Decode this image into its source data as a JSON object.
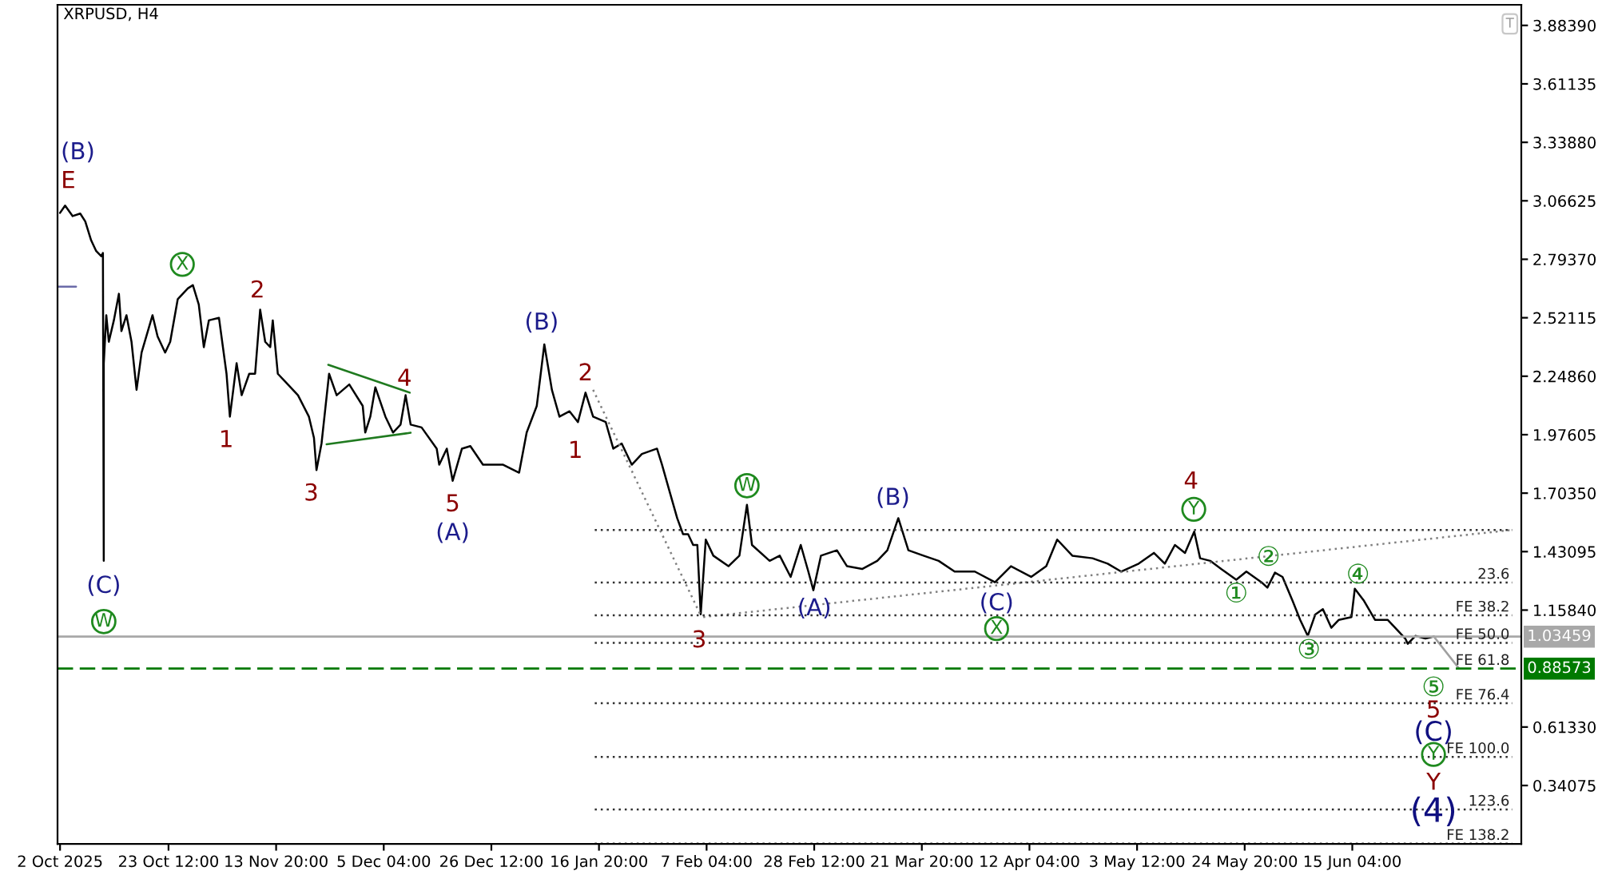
{
  "chart_data": {
    "type": "line",
    "title": "XRPUSD, H4",
    "xlim": [
      "2025-10-01T12:00",
      "2026-07-18T16:00"
    ],
    "xticks": [
      {
        "value": "2025-10-02T00:00",
        "label": "2 Oct 2025"
      },
      {
        "value": "2025-10-23T12:00",
        "label": "23 Oct 12:00"
      },
      {
        "value": "2025-11-13T20:00",
        "label": "13 Nov 20:00"
      },
      {
        "value": "2025-12-05T04:00",
        "label": "5 Dec 04:00"
      },
      {
        "value": "2025-12-26T12:00",
        "label": "26 Dec 12:00"
      },
      {
        "value": "2026-01-16T20:00",
        "label": "16 Jan 20:00"
      },
      {
        "value": "2026-02-07T04:00",
        "label": "7 Feb 04:00"
      },
      {
        "value": "2026-02-28T12:00",
        "label": "28 Feb 12:00"
      },
      {
        "value": "2026-03-21T20:00",
        "label": "21 Mar 20:00"
      },
      {
        "value": "2026-04-12T04:00",
        "label": "12 Apr 04:00"
      },
      {
        "value": "2026-05-03T12:00",
        "label": "3 May 12:00"
      },
      {
        "value": "2026-05-24T20:00",
        "label": "24 May 20:00"
      },
      {
        "value": "2026-06-15T04:00",
        "label": "15 Jun 04:00"
      }
    ],
    "ylim": [
      0.068,
      3.98
    ],
    "yticks": [
      {
        "value": 3.8839,
        "label": "3.88390"
      },
      3.61135,
      {
        "value": 3.3388,
        "label": "3.33880"
      },
      3.06625,
      {
        "value": 2.7937,
        "label": "2.79370"
      },
      2.52115,
      {
        "value": 2.2486,
        "label": "2.24860"
      },
      1.97605,
      {
        "value": 1.7035,
        "label": "1.70350"
      },
      1.43095,
      {
        "value": 1.1584,
        "label": "1.15840"
      },
      {
        "value": 0.6133,
        "label": "0.61330"
      },
      0.34075
    ],
    "grid": false,
    "series": [
      {
        "color": "#000000",
        "x": [
          "2025-10-02T00:00",
          "2025-10-03T00:00",
          "2025-10-04T12:00",
          "2025-10-06T00:00",
          "2025-10-07T00:00",
          "2025-10-08T04:00",
          "2025-10-09T04:00",
          "2025-10-10T04:00",
          "2025-10-10T12:00",
          "2025-10-10T16:00",
          "2025-10-10T16:00",
          "2025-10-11T04:00",
          "2025-10-11T16:00",
          "2025-10-12T16:00",
          "2025-10-13T16:00",
          "2025-10-14T04:00",
          "2025-10-15T04:00",
          "2025-10-16T04:00",
          "2025-10-17T04:00",
          "2025-10-18T04:00",
          "2025-10-20T08:00",
          "2025-10-21T08:00",
          "2025-10-22T20:00",
          "2025-10-23T20:00",
          "2025-10-25T08:00",
          "2025-10-27T08:00",
          "2025-10-28T08:00",
          "2025-10-29T12:00",
          "2025-10-30T12:00",
          "2025-10-31T12:00",
          "2025-11-02T12:00",
          "2025-11-04T00:00",
          "2025-11-04T16:00",
          "2025-11-06T00:00",
          "2025-11-07T00:00",
          "2025-11-08T12:00",
          "2025-11-09T16:00",
          "2025-11-10T16:00",
          "2025-11-11T16:00",
          "2025-11-12T16:00",
          "2025-11-13T04:00",
          "2025-11-14T04:00",
          "2025-11-16T04:00",
          "2025-11-18T04:00",
          "2025-11-20T08:00",
          "2025-11-21T08:00",
          "2025-11-21T20:00",
          "2025-11-22T20:00",
          "2025-11-24T08:00",
          "2025-11-25T20:00",
          "2025-11-28T08:00",
          "2025-12-01T00:00",
          "2025-12-01T12:00",
          "2025-12-02T12:00",
          "2025-12-03T12:00",
          "2025-12-05T12:00",
          "2025-12-07T00:00",
          "2025-12-08T12:00",
          "2025-12-09T12:00",
          "2025-12-10T12:00",
          "2025-12-12T16:00",
          "2025-12-15T16:00",
          "2025-12-16T04:00",
          "2025-12-17T16:00",
          "2025-12-18T20:00",
          "2025-12-20T16:00",
          "2025-12-22T08:00",
          "2025-12-24T20:00",
          "2025-12-28T20:00",
          "2026-01-01T00:00",
          "2026-01-02T12:00",
          "2026-01-04T12:00",
          "2026-01-06T00:00",
          "2026-01-07T12:00",
          "2026-01-09T00:00",
          "2026-01-11T00:00",
          "2026-01-12T16:00",
          "2026-01-14T04:00",
          "2026-01-15T16:00",
          "2026-01-18T04:00",
          "2026-01-19T16:00",
          "2026-01-21T08:00",
          "2026-01-23T08:00",
          "2026-01-25T08:00",
          "2026-01-28T08:00",
          "2026-01-29T08:00",
          "2026-01-30T20:00",
          "2026-02-01T08:00",
          "2026-02-02T12:00",
          "2026-02-03T12:00",
          "2026-02-04T12:00",
          "2026-02-05T08:00",
          "2026-02-06T00:00",
          "2026-02-07T00:00",
          "2026-02-08T12:00",
          "2026-02-11T12:00",
          "2026-02-13T16:00",
          "2026-02-15T04:00",
          "2026-02-16T04:00",
          "2026-02-19T16:00",
          "2026-02-21T16:00",
          "2026-02-23T20:00",
          "2026-02-25T20:00",
          "2026-02-27T08:00",
          "2026-02-28T08:00",
          "2026-03-01T20:00",
          "2026-03-05T00:00",
          "2026-03-07T00:00",
          "2026-03-10T00:00",
          "2026-03-13T00:00",
          "2026-03-15T00:00",
          "2026-03-17T04:00",
          "2026-03-19T04:00",
          "2026-03-22T04:00",
          "2026-03-25T04:00",
          "2026-03-28T08:00",
          "2026-04-01T08:00",
          "2026-04-05T08:00",
          "2026-04-08T12:00",
          "2026-04-12T12:00",
          "2026-04-15T12:00",
          "2026-04-17T16:00",
          "2026-04-20T16:00",
          "2026-04-24T16:00",
          "2026-04-27T16:00",
          "2026-04-30T08:00",
          "2026-05-03T20:00",
          "2026-05-06T20:00",
          "2026-05-09T00:00",
          "2026-05-11T00:00",
          "2026-05-13T00:00",
          "2026-05-14T20:00",
          "2026-05-16T00:00",
          "2026-05-18T00:00",
          "2026-05-20T04:00",
          "2026-05-23T04:00",
          "2026-05-25T04:00",
          "2026-05-28T04:00",
          "2026-05-29T08:00",
          "2026-05-30T20:00",
          "2026-06-01T08:00",
          "2026-06-03T08:00",
          "2026-06-04T20:00",
          "2026-06-06T08:00",
          "2026-06-07T20:00",
          "2026-06-09T08:00",
          "2026-06-11T00:00",
          "2026-06-12T12:00",
          "2026-06-15T00:00",
          "2026-06-15T16:00",
          "2026-06-17T12:00",
          "2026-06-19T16:00",
          "2026-06-22T04:00",
          "2026-06-23T16:00",
          "2026-06-25T16:00",
          "2026-06-26T04:00",
          "2026-06-27T16:00",
          "2026-06-29T16:00",
          "2026-07-01T08:00"
        ],
        "values": [
          3.01,
          3.044,
          2.995,
          3.007,
          2.97,
          2.882,
          2.832,
          2.808,
          2.823,
          1.388,
          2.309,
          2.533,
          2.409,
          2.509,
          2.633,
          2.459,
          2.533,
          2.409,
          2.185,
          2.359,
          2.533,
          2.434,
          2.359,
          2.409,
          2.608,
          2.658,
          2.673,
          2.583,
          2.384,
          2.509,
          2.521,
          2.26,
          2.06,
          2.309,
          2.16,
          2.26,
          2.26,
          2.559,
          2.409,
          2.384,
          2.509,
          2.26,
          2.21,
          2.16,
          2.06,
          1.961,
          1.811,
          1.935,
          2.26,
          2.16,
          2.21,
          2.11,
          1.986,
          2.06,
          2.197,
          2.06,
          1.986,
          2.023,
          2.16,
          2.023,
          2.01,
          1.911,
          1.836,
          1.911,
          1.761,
          1.911,
          1.923,
          1.836,
          1.836,
          1.799,
          1.986,
          2.11,
          2.397,
          2.185,
          2.06,
          2.085,
          2.035,
          2.172,
          2.06,
          2.035,
          1.911,
          1.935,
          1.836,
          1.886,
          1.911,
          1.836,
          1.711,
          1.587,
          1.512,
          1.512,
          1.462,
          1.462,
          1.139,
          1.487,
          1.412,
          1.363,
          1.412,
          1.649,
          1.462,
          1.388,
          1.412,
          1.313,
          1.462,
          1.338,
          1.251,
          1.412,
          1.437,
          1.363,
          1.35,
          1.388,
          1.437,
          1.587,
          1.437,
          1.412,
          1.388,
          1.338,
          1.338,
          1.288,
          1.363,
          1.313,
          1.363,
          1.487,
          1.412,
          1.4,
          1.375,
          1.338,
          1.375,
          1.425,
          1.375,
          1.462,
          1.425,
          1.524,
          1.4,
          1.388,
          1.35,
          1.3,
          1.338,
          1.288,
          1.263,
          1.333,
          1.313,
          1.201,
          1.113,
          1.038,
          1.138,
          1.163,
          1.076,
          1.113,
          1.126,
          1.258,
          1.201,
          1.113,
          1.113,
          1.076,
          1.026,
          1.001,
          1.038,
          1.026,
          1.035
        ]
      },
      {
        "color": "#a0a0a0",
        "x": [
          "2026-07-01T08:00",
          "2026-07-06T08:00"
        ],
        "values": [
          1.035,
          0.886
        ]
      },
      {
        "color": "#1f7a1f",
        "x": [
          "2025-11-24T04:00",
          "2025-12-10T08:00"
        ],
        "values": [
          2.302,
          2.172
        ]
      },
      {
        "color": "#1f7a1f",
        "x": [
          "2025-11-23T20:00",
          "2025-12-10T12:00"
        ],
        "values": [
          1.931,
          1.985
        ]
      },
      {
        "color": "#808080",
        "line_style": "dotted",
        "x": [
          "2026-01-15T16:00",
          "2026-02-06T00:00"
        ],
        "values": [
          2.185,
          1.134
        ]
      },
      {
        "color": "#808080",
        "line_style": "dotted",
        "x": [
          "2026-02-06T12:00",
          "2026-07-16T20:00"
        ],
        "values": [
          1.126,
          1.532
        ]
      },
      {
        "color": "#303030",
        "line_style": "dotted",
        "x": [
          "2026-01-16T00:00",
          "2026-07-16T20:00"
        ],
        "values": [
          1.532,
          1.532
        ]
      },
      {
        "color": "#303030",
        "line_style": "dotted",
        "x": [
          "2026-01-16T00:00",
          "2026-07-16T20:00"
        ],
        "values": [
          1.287,
          1.287
        ]
      },
      {
        "color": "#303030",
        "line_style": "dotted",
        "x": [
          "2026-01-16T00:00",
          "2026-07-16T20:00"
        ],
        "values": [
          1.134,
          1.134
        ]
      },
      {
        "color": "#303030",
        "line_style": "dotted",
        "x": [
          "2026-01-16T00:00",
          "2026-07-16T20:00"
        ],
        "values": [
          1.006,
          1.006
        ]
      },
      {
        "color": "#303030",
        "line_style": "dotted",
        "x": [
          "2026-01-16T00:00",
          "2026-07-16T20:00"
        ],
        "values": [
          0.724,
          0.724
        ]
      },
      {
        "color": "#303030",
        "line_style": "dotted",
        "x": [
          "2026-01-16T00:00",
          "2026-07-16T20:00"
        ],
        "values": [
          0.474,
          0.474
        ]
      },
      {
        "color": "#303030",
        "line_style": "dotted",
        "x": [
          "2026-01-16T00:00",
          "2026-07-16T20:00"
        ],
        "values": [
          0.229,
          0.229
        ]
      },
      {
        "color": "#303030",
        "line_style": "dotted",
        "x": [
          "2026-01-16T00:00",
          "2026-07-16T20:00"
        ],
        "values": [
          0.07,
          0.07
        ]
      },
      {
        "color": "#6a6aa8",
        "x": [
          "2025-10-01T12:00",
          "2025-10-05T04:00"
        ],
        "values": [
          2.666,
          2.666
        ]
      }
    ],
    "ref_lines": [
      {
        "axis": "y",
        "value": 1.03459,
        "label": "1.03459",
        "color": "#a8a8a8"
      },
      {
        "axis": "y",
        "value": 0.88573,
        "label": "0.88573",
        "color": "#007a00",
        "line_style": "dashed"
      }
    ],
    "annotations": [
      {
        "text": "(B)",
        "x": "2025-10-03T00:00",
        "y": 3.044
      },
      {
        "text": "E",
        "x": "2025-10-03T00:00",
        "y": 3.044
      },
      {
        "text": "X",
        "x": "2025-10-28T08:00",
        "y": 2.673
      },
      {
        "text": "2",
        "x": "2025-11-10T16:00",
        "y": 2.559
      },
      {
        "text": "1",
        "x": "2025-11-04T16:00",
        "y": 2.06
      },
      {
        "text": "3",
        "x": "2025-11-21T20:00",
        "y": 1.811
      },
      {
        "text": "4",
        "x": "2025-12-09T12:00",
        "y": 2.16
      },
      {
        "text": "5",
        "x": "2025-12-18T20:00",
        "y": 1.761
      },
      {
        "text": "(A)",
        "x": "2025-12-18T20:00",
        "y": 1.761
      },
      {
        "text": "(B)",
        "x": "2026-01-06T00:00",
        "y": 2.397
      },
      {
        "text": "2",
        "x": "2026-01-14T04:00",
        "y": 2.172
      },
      {
        "text": "1",
        "x": "2026-01-12T16:00",
        "y": 2.035
      },
      {
        "text": "(C)",
        "x": "2025-10-10T16:00",
        "y": 1.388
      },
      {
        "text": "W",
        "x": "2025-10-10T16:00",
        "y": 1.388
      },
      {
        "text": "3",
        "x": "2026-02-06T00:00",
        "y": 1.139
      },
      {
        "text": "W",
        "x": "2026-02-15T04:00",
        "y": 1.649
      },
      {
        "text": "(B)",
        "x": "2026-03-17T04:00",
        "y": 1.587
      },
      {
        "text": "(A)",
        "x": "2026-02-28T08:00",
        "y": 1.251
      },
      {
        "text": "(C)",
        "x": "2026-04-05T08:00",
        "y": 1.288
      },
      {
        "text": "X",
        "x": "2026-04-05T08:00",
        "y": 1.288
      },
      {
        "text": "4",
        "x": "2026-05-14T20:00",
        "y": 1.524
      },
      {
        "text": "Y",
        "x": "2026-05-14T20:00",
        "y": 1.524
      },
      {
        "text": "①",
        "x": "2026-05-23T04:00",
        "y": 1.3
      },
      {
        "text": "②",
        "x": "2026-05-30T20:00",
        "y": 1.333
      },
      {
        "text": "③",
        "x": "2026-06-06T08:00",
        "y": 1.038
      },
      {
        "text": "④",
        "x": "2026-06-15T16:00",
        "y": 1.258
      },
      {
        "text": "⑤",
        "x": "2026-07-06T08:00",
        "y": 0.886
      },
      {
        "text": "5",
        "x": "2026-07-06T08:00",
        "y": 0.886
      },
      {
        "text": "(C)",
        "x": "2026-07-06T08:00",
        "y": 0.886
      },
      {
        "text": "Y",
        "x": "2026-07-06T08:00",
        "y": 0.474
      },
      {
        "text": "Y",
        "x": "2026-07-06T08:00",
        "y": 0.474
      },
      {
        "text": "(4)",
        "x": "2026-07-06T08:00",
        "y": 0.229
      },
      {
        "text": "23.6",
        "x": "2026-07-16T20:00",
        "y": 1.287
      },
      {
        "text": "FE 38.2",
        "x": "2026-07-16T20:00",
        "y": 1.134
      },
      {
        "text": "FE 50.0",
        "x": "2026-07-16T20:00",
        "y": 1.006
      },
      {
        "text": "FE 61.8",
        "x": "2026-07-16T20:00",
        "y": 0.88573
      },
      {
        "text": "FE 76.4",
        "x": "2026-07-16T20:00",
        "y": 0.724
      },
      {
        "text": "FE 100.0",
        "x": "2026-07-16T20:00",
        "y": 0.474
      },
      {
        "text": "123.6",
        "x": "2026-07-16T20:00",
        "y": 0.229
      },
      {
        "text": "FE 138.2",
        "x": "2026-07-16T20:00",
        "y": 0.07
      },
      "T"
    ]
  }
}
